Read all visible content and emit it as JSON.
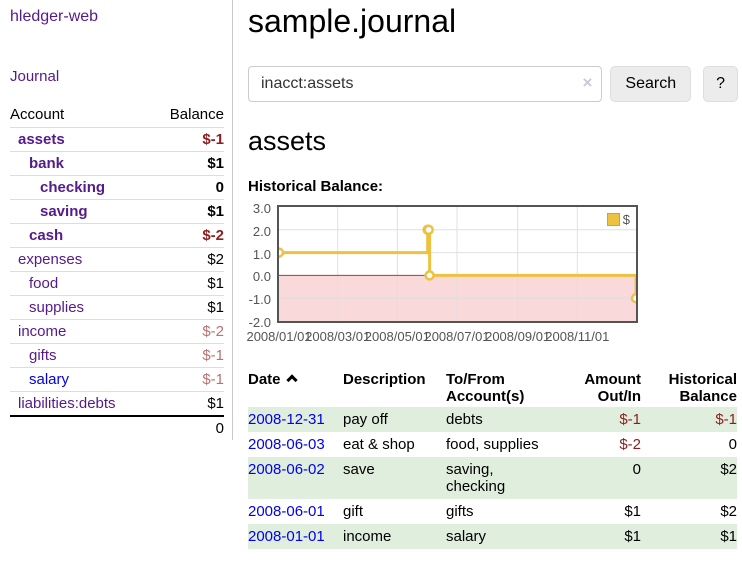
{
  "app": {
    "brand": "hledger-web",
    "nav_journal": "Journal"
  },
  "sidebar": {
    "header": {
      "account": "Account",
      "balance": "Balance"
    },
    "accounts": [
      {
        "name": "assets",
        "balance": "$-1",
        "depth": 1,
        "bold": true,
        "balance_style": "neg-strong",
        "link_color": "purple"
      },
      {
        "name": "bank",
        "balance": "$1",
        "depth": 2,
        "bold": true,
        "balance_style": "pos",
        "link_color": "purple"
      },
      {
        "name": "checking",
        "balance": "0",
        "depth": 3,
        "bold": true,
        "balance_style": "pos",
        "link_color": "purple"
      },
      {
        "name": "saving",
        "balance": "$1",
        "depth": 3,
        "bold": true,
        "balance_style": "pos",
        "link_color": "purple"
      },
      {
        "name": "cash",
        "balance": "$-2",
        "depth": 2,
        "bold": true,
        "balance_style": "neg-strong",
        "link_color": "purple"
      },
      {
        "name": "expenses",
        "balance": "$2",
        "depth": 1,
        "bold": false,
        "balance_style": "pos",
        "link_color": "purple"
      },
      {
        "name": "food",
        "balance": "$1",
        "depth": 2,
        "bold": false,
        "balance_style": "pos",
        "link_color": "purple"
      },
      {
        "name": "supplies",
        "balance": "$1",
        "depth": 2,
        "bold": false,
        "balance_style": "pos",
        "link_color": "purple"
      },
      {
        "name": "income",
        "balance": "$-2",
        "depth": 1,
        "bold": false,
        "balance_style": "neg-weak",
        "link_color": "purple"
      },
      {
        "name": "gifts",
        "balance": "$-1",
        "depth": 2,
        "bold": false,
        "balance_style": "neg-weak",
        "link_color": "purple"
      },
      {
        "name": "salary",
        "balance": "$-1",
        "depth": 2,
        "bold": false,
        "balance_style": "neg-weak",
        "link_color": "blue"
      },
      {
        "name": "liabilities:debts",
        "balance": "$1",
        "depth": 1,
        "bold": false,
        "balance_style": "pos",
        "link_color": "purple"
      }
    ],
    "total": "0"
  },
  "main": {
    "title": "sample.journal",
    "search": {
      "value": "inacct:assets",
      "clear_icon": "×",
      "button": "Search",
      "help_button": "?"
    },
    "account_heading": "assets",
    "chart_label": "Historical Balance:"
  },
  "chart_data": {
    "type": "line",
    "title": "Historical Balance",
    "legend": "$",
    "legend_position": "top-right",
    "grid": true,
    "step": true,
    "line_color": "#edc240",
    "marker": "open-circle",
    "zero_line_color": "#bb3333",
    "negative_region_color": "#f9d9d9",
    "ylim": [
      -2.0,
      3.0
    ],
    "yticks": [
      {
        "label": "3.0",
        "value": 3
      },
      {
        "label": "2.0",
        "value": 2
      },
      {
        "label": "1.0",
        "value": 1
      },
      {
        "label": "0.0",
        "value": 0
      },
      {
        "label": "-1.0",
        "value": -1
      },
      {
        "label": "-2.0",
        "value": -2
      }
    ],
    "x_span_days": 365,
    "xticks": [
      {
        "label": "2008/01/01",
        "day": 0
      },
      {
        "label": "2008/03/01",
        "day": 60
      },
      {
        "label": "2008/05/01",
        "day": 121
      },
      {
        "label": "2008/07/01",
        "day": 182
      },
      {
        "label": "2008/09/01",
        "day": 244
      },
      {
        "label": "2008/11/01",
        "day": 305
      }
    ],
    "points": [
      {
        "date": "2008-01-01",
        "day": 0,
        "value": 1
      },
      {
        "date": "2008-06-01",
        "day": 152,
        "value": 2
      },
      {
        "date": "2008-06-02",
        "day": 153,
        "value": 2
      },
      {
        "date": "2008-06-03",
        "day": 154,
        "value": 0
      },
      {
        "date": "2008-12-31",
        "day": 365,
        "value": -1
      }
    ]
  },
  "register": {
    "columns": [
      {
        "lines": [
          "Date"
        ],
        "align": "left",
        "sorted": true
      },
      {
        "lines": [
          "Description"
        ],
        "align": "left",
        "sorted": false
      },
      {
        "lines": [
          "To/From",
          "Account(s)"
        ],
        "align": "left",
        "sorted": false
      },
      {
        "lines": [
          "Amount",
          "Out/In"
        ],
        "align": "right",
        "sorted": false
      },
      {
        "lines": [
          "Historical",
          "Balance"
        ],
        "align": "right",
        "sorted": false
      }
    ],
    "sort_icon": "chevron-up",
    "rows": [
      {
        "date": "2008-12-31",
        "description": "pay off",
        "accounts": "debts",
        "amount": "$-1",
        "amount_neg": true,
        "balance": "$-1",
        "balance_neg": true,
        "shaded": true
      },
      {
        "date": "2008-06-03",
        "description": "eat & shop",
        "accounts": "food, supplies",
        "amount": "$-2",
        "amount_neg": true,
        "balance": "0",
        "balance_neg": false,
        "shaded": false
      },
      {
        "date": "2008-06-02",
        "description": "save",
        "accounts": "saving, checking",
        "amount": "0",
        "amount_neg": false,
        "balance": "$2",
        "balance_neg": false,
        "shaded": true
      },
      {
        "date": "2008-06-01",
        "description": "gift",
        "accounts": "gifts",
        "amount": "$1",
        "amount_neg": false,
        "balance": "$2",
        "balance_neg": false,
        "shaded": false
      },
      {
        "date": "2008-01-01",
        "description": "income",
        "accounts": "salary",
        "amount": "$1",
        "amount_neg": false,
        "balance": "$1",
        "balance_neg": false,
        "shaded": true
      }
    ]
  }
}
